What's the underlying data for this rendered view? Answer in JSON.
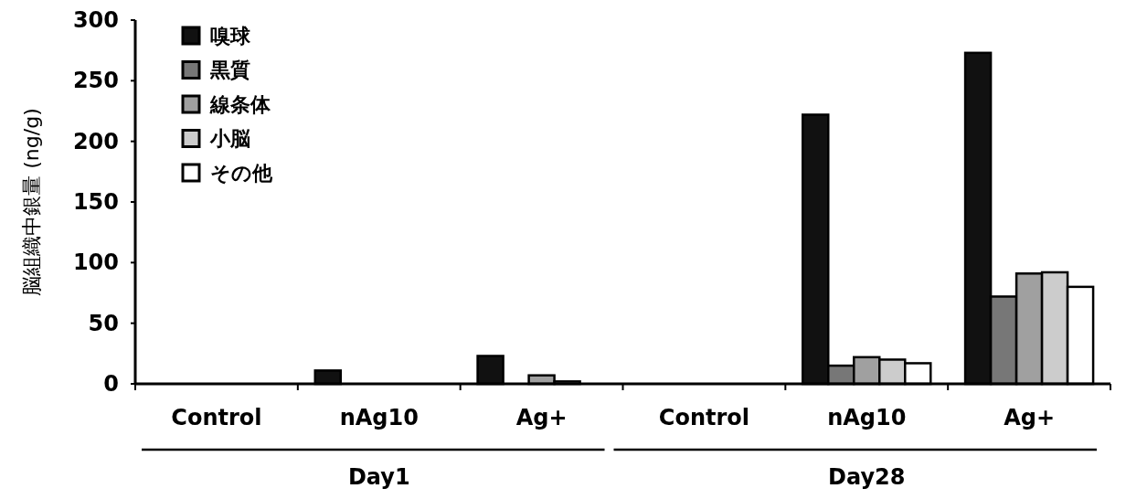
{
  "chart_data": {
    "type": "bar",
    "ylabel": "脳組織中銀量 (ng/g)",
    "categories": [
      "Control",
      "nAg10",
      "Ag+",
      "Control",
      "nAg10",
      "Ag+"
    ],
    "series": [
      {
        "name": "嗅球",
        "color": "#111111",
        "values": [
          0,
          11,
          23,
          0,
          222,
          273
        ]
      },
      {
        "name": "黒質",
        "color": "#777777",
        "values": [
          0,
          0,
          0,
          0,
          15,
          72
        ]
      },
      {
        "name": "線条体",
        "color": "#a0a0a0",
        "values": [
          0,
          0,
          7,
          0,
          22,
          91
        ]
      },
      {
        "name": "小脳",
        "color": "#cccccc",
        "values": [
          0,
          0,
          2,
          0,
          20,
          92
        ]
      },
      {
        "name": "その他",
        "color": "#ffffff",
        "values": [
          0,
          0,
          0,
          0,
          17,
          80
        ]
      }
    ],
    "ylim": [
      0,
      300
    ],
    "yticks": [
      0,
      50,
      100,
      150,
      200,
      250,
      300
    ],
    "annotations": [
      "Day1",
      "Day28"
    ],
    "legend": "top left",
    "grid": false
  }
}
